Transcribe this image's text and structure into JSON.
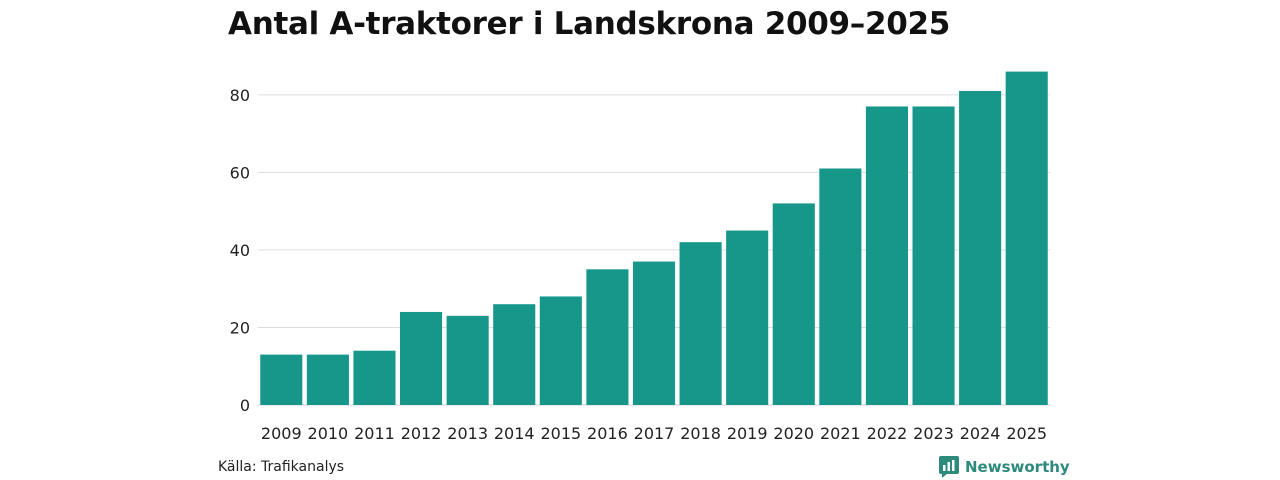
{
  "title": "Antal A-traktorer i Landskrona 2009–2025",
  "source": "Källa: Trafikanalys",
  "brand": "Newsworthy",
  "colors": {
    "bar": "#16978a",
    "grid": "#dddddd",
    "brand": "#2d8a7d"
  },
  "chart_data": {
    "type": "bar",
    "title": "Antal A-traktorer i Landskrona 2009–2025",
    "xlabel": "",
    "ylabel": "",
    "categories": [
      "2009",
      "2010",
      "2011",
      "2012",
      "2013",
      "2014",
      "2015",
      "2016",
      "2017",
      "2018",
      "2019",
      "2020",
      "2021",
      "2022",
      "2023",
      "2024",
      "2025"
    ],
    "values": [
      13,
      13,
      14,
      24,
      23,
      26,
      28,
      35,
      37,
      42,
      45,
      52,
      61,
      77,
      77,
      81,
      86
    ],
    "ylim": [
      0,
      86
    ],
    "yticks": [
      0,
      20,
      40,
      60,
      80
    ],
    "grid": true,
    "legend": "none"
  }
}
